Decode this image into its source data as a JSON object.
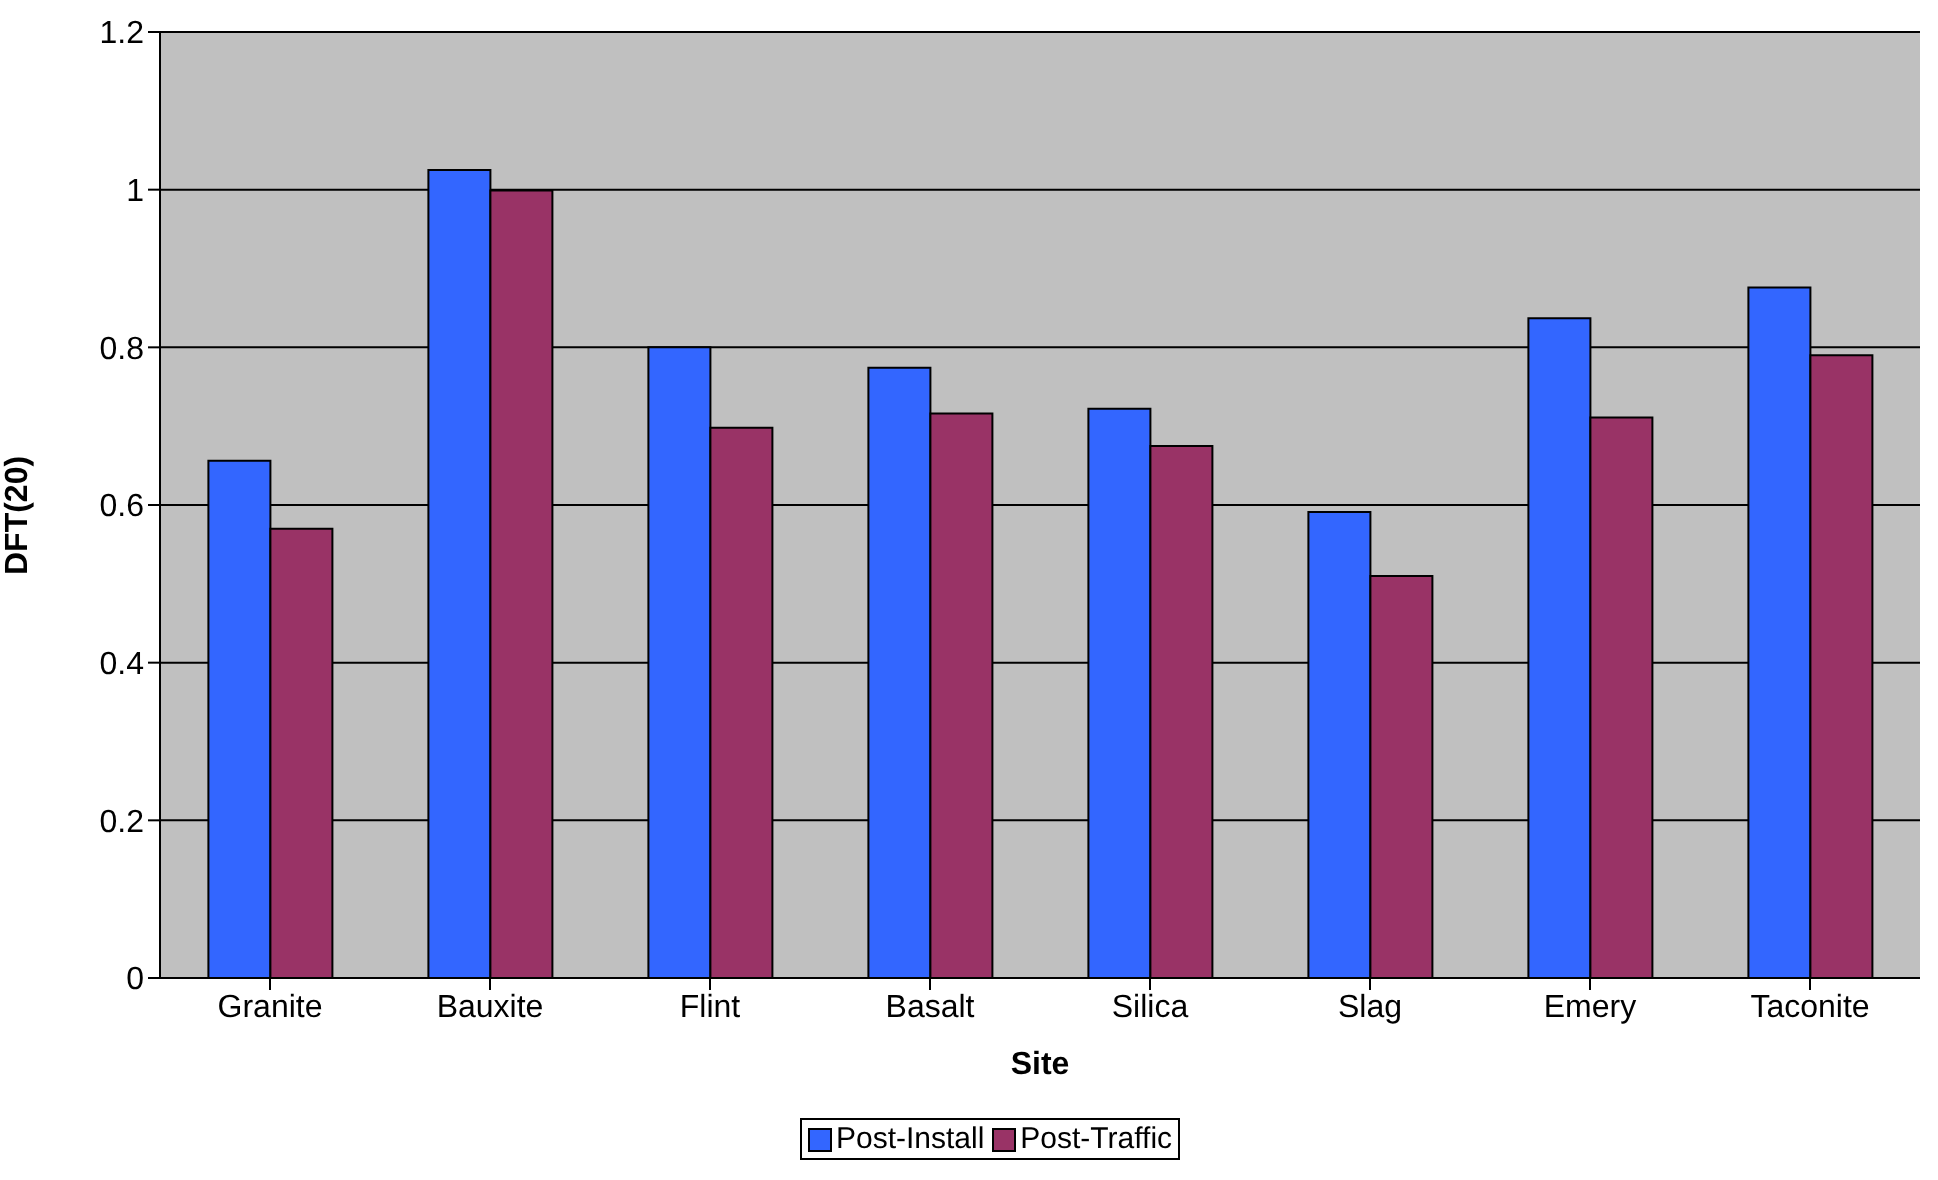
{
  "chart_data": {
    "type": "bar",
    "xlabel": "Site",
    "ylabel": "DFT(20)",
    "categories": [
      "Granite",
      "Bauxite",
      "Flint",
      "Basalt",
      "Silica",
      "Slag",
      "Emery",
      "Taconite"
    ],
    "series": [
      {
        "name": "Post-Install",
        "color": "#3366ff",
        "values": [
          0.656,
          1.025,
          0.8,
          0.774,
          0.722,
          0.591,
          0.837,
          0.876
        ]
      },
      {
        "name": "Post-Traffic",
        "color": "#993366",
        "values": [
          0.57,
          0.999,
          0.698,
          0.716,
          0.675,
          0.51,
          0.711,
          0.79
        ]
      }
    ],
    "ylim": [
      0,
      1.2
    ],
    "yticks": [
      0,
      0.2,
      0.4,
      0.6,
      0.8,
      1,
      1.2
    ],
    "grid": "y",
    "legend": "bottom"
  }
}
